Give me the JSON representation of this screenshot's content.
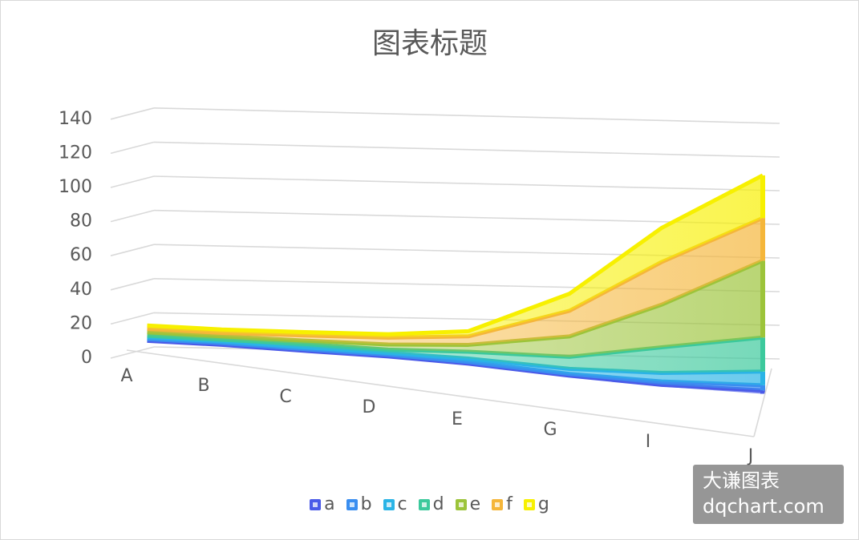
{
  "chart_data": {
    "type": "area",
    "title": "图表标题",
    "categories": [
      "A",
      "B",
      "C",
      "D",
      "E",
      "G",
      "I",
      "J"
    ],
    "ylim": [
      0,
      140
    ],
    "ytick_labels": [
      "0",
      "20",
      "40",
      "60",
      "80",
      "100",
      "120",
      "140"
    ],
    "grid": true,
    "legend_position": "bottom",
    "series": [
      {
        "name": "a",
        "color": "#4a5ae8",
        "values": [
          1,
          1,
          1,
          1,
          1,
          1,
          1,
          2
        ]
      },
      {
        "name": "b",
        "color": "#3a8ef0",
        "values": [
          1,
          1,
          1,
          1,
          1,
          1,
          2,
          3
        ]
      },
      {
        "name": "c",
        "color": "#2ab4e6",
        "values": [
          1,
          1,
          1,
          1,
          2,
          3,
          5,
          8
        ]
      },
      {
        "name": "d",
        "color": "#3cc99c",
        "values": [
          1,
          1,
          2,
          2,
          4,
          7,
          15,
          20
        ]
      },
      {
        "name": "e",
        "color": "#9cc43a",
        "values": [
          2,
          2,
          2,
          3,
          4,
          12,
          25,
          45
        ]
      },
      {
        "name": "f",
        "color": "#f5b63a",
        "values": [
          2,
          2,
          3,
          4,
          5,
          15,
          25,
          25
        ]
      },
      {
        "name": "g",
        "color": "#f7f000",
        "values": [
          2,
          2,
          2,
          2,
          3,
          10,
          20,
          25
        ]
      }
    ]
  },
  "watermark": {
    "line1": "大谦图表",
    "line2": "dqchart.com"
  }
}
